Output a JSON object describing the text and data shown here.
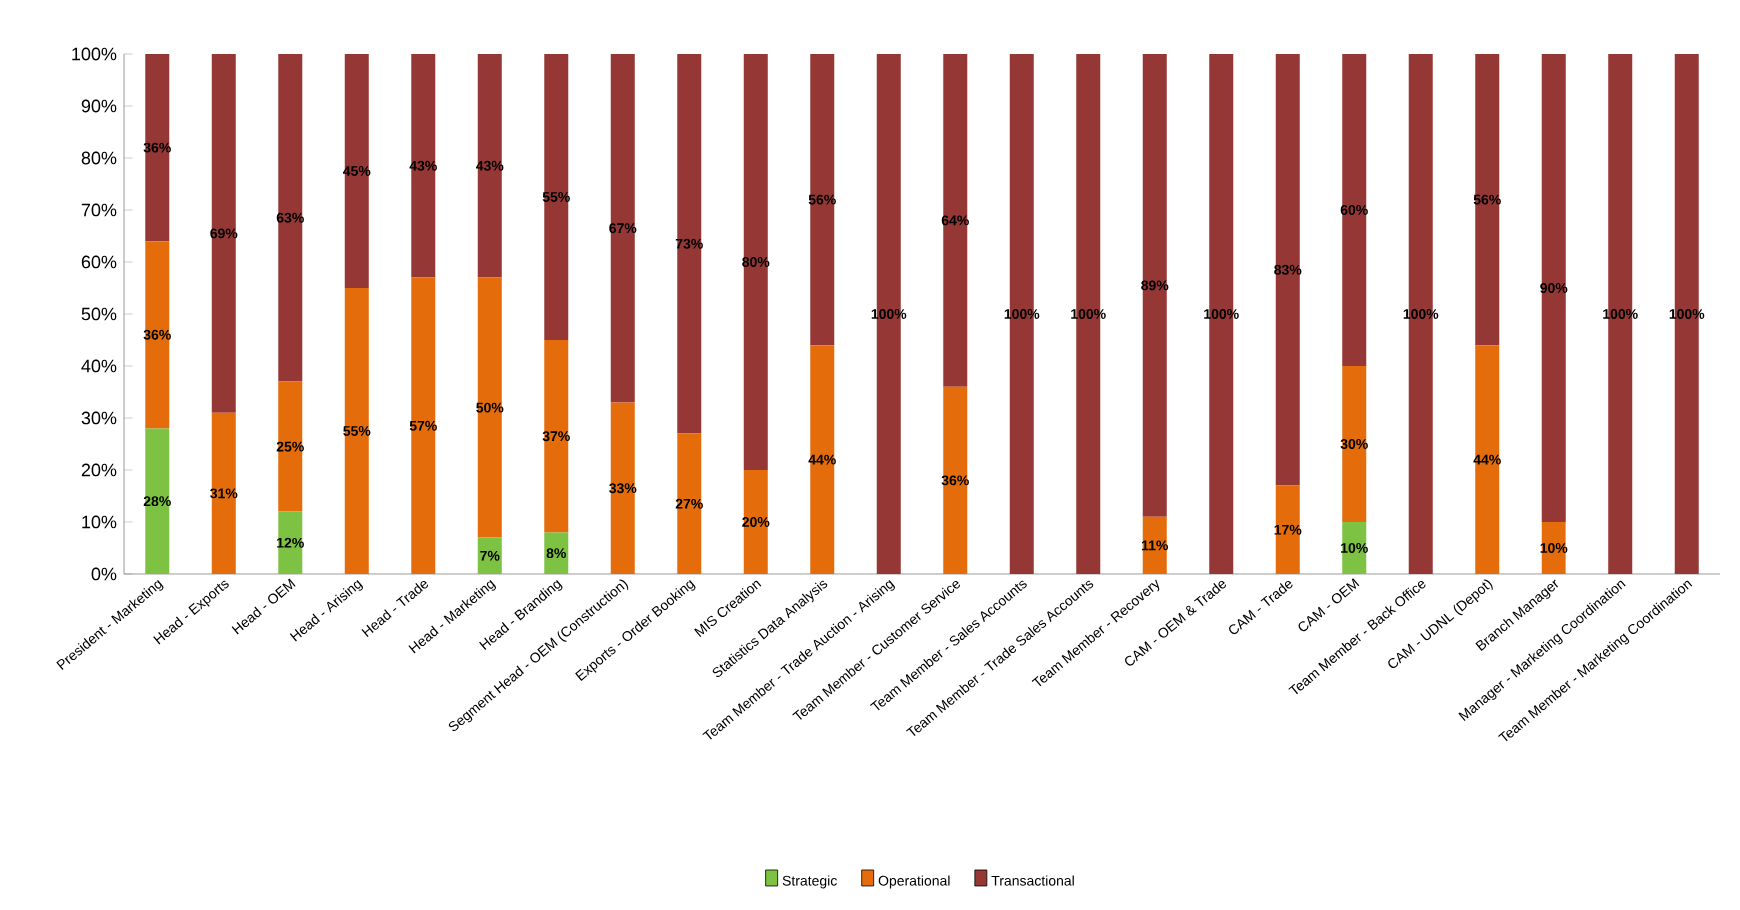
{
  "chart_data": {
    "type": "bar",
    "stacked": true,
    "legend": "bottom",
    "categories": [
      "President - Marketing",
      "Head - Exports",
      "Head - OEM",
      "Head - Arising",
      "Head - Trade",
      "Head - Marketing",
      "Head - Branding",
      "Segment Head - OEM (Construction)",
      "Exports - Order Booking",
      "MIS Creation",
      "Statistics Data Analysis",
      "Team Member - Trade Auction - Arising",
      "Team Member - Customer Service",
      "Team Member - Sales Accounts",
      "Team Member - Trade Sales Accounts",
      "Team Member - Recovery",
      "CAM - OEM & Trade",
      "CAM - Trade",
      "CAM - OEM",
      "Team Member - Back Office",
      "CAM - UDNL (Depot)",
      "Branch Manager",
      "Manager - Marketing Coordination",
      "Team Member - Marketing Coordination"
    ],
    "ylim": [
      0,
      100
    ],
    "yticks": [
      {
        "value": 0,
        "label": "0%"
      },
      {
        "value": 10,
        "label": "10%"
      },
      {
        "value": 20,
        "label": "20%"
      },
      {
        "value": 30,
        "label": "30%"
      },
      {
        "value": 40,
        "label": "40%"
      },
      {
        "value": 50,
        "label": "50%"
      },
      {
        "value": 60,
        "label": "60%"
      },
      {
        "value": 70,
        "label": "70%"
      },
      {
        "value": 80,
        "label": "80%"
      },
      {
        "value": 90,
        "label": "90%"
      },
      {
        "value": 100,
        "label": "100%"
      }
    ],
    "series": [
      {
        "name": "Strategic",
        "color": "#7dc242",
        "values": [
          28,
          0,
          12,
          0,
          0,
          7,
          8,
          0,
          0,
          0,
          0,
          0,
          0,
          0,
          0,
          0,
          0,
          0,
          10,
          0,
          0,
          0,
          0,
          0
        ],
        "value_labels": [
          "28%",
          null,
          "12%",
          null,
          null,
          "7%",
          "8%",
          null,
          null,
          null,
          null,
          null,
          null,
          null,
          null,
          null,
          null,
          null,
          "10%",
          null,
          null,
          null,
          null,
          null
        ]
      },
      {
        "name": "Operational",
        "color": "#e46c0a",
        "values": [
          36,
          31,
          25,
          55,
          57,
          50,
          37,
          33,
          27,
          20,
          44,
          0,
          36,
          0,
          0,
          11,
          0,
          17,
          30,
          0,
          44,
          10,
          0,
          0
        ],
        "value_labels": [
          "36%",
          "31%",
          "25%",
          "55%",
          "57%",
          "50%",
          "37%",
          "33%",
          "27%",
          "20%",
          "44%",
          null,
          "36%",
          null,
          null,
          "11%",
          null,
          "17%",
          "30%",
          null,
          "44%",
          "10%",
          null,
          null
        ]
      },
      {
        "name": "Transactional",
        "color": "#953735",
        "values": [
          36,
          69,
          63,
          45,
          43,
          43,
          55,
          67,
          73,
          80,
          56,
          100,
          64,
          100,
          100,
          89,
          100,
          83,
          60,
          100,
          56,
          90,
          100,
          100
        ],
        "value_labels": [
          "36%",
          "69%",
          "63%",
          "45%",
          "43%",
          "43%",
          "55%",
          "67%",
          "73%",
          "80%",
          "56%",
          "100%",
          "64%",
          "100%",
          "100%",
          "89%",
          "100%",
          "83%",
          "60%",
          "100%",
          "56%",
          "90%",
          "100%",
          "100%"
        ]
      }
    ]
  }
}
